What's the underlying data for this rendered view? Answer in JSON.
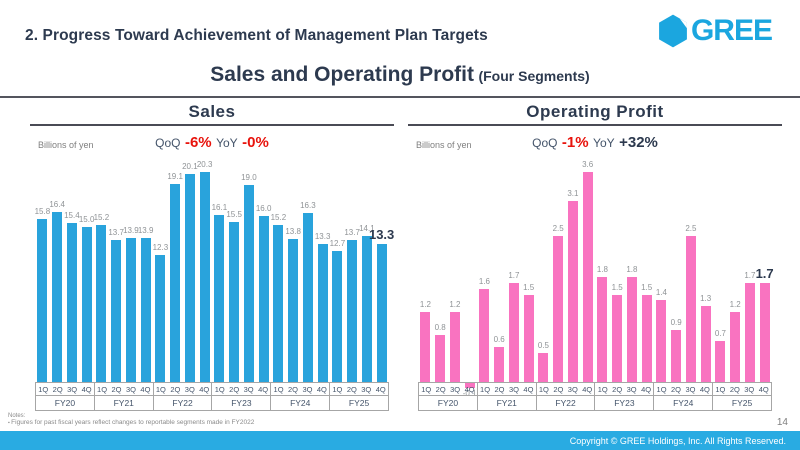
{
  "header": {
    "slide_title": "2. Progress Toward Achievement of Management Plan Targets",
    "logo_text": "GREE",
    "subtitle": "Sales and Operating Profit",
    "subtitle_suffix": "(Four Segments)"
  },
  "colors": {
    "brand_blue": "#1ba6df",
    "title_navy": "#2d3a4f",
    "negative_red": "#e8130c",
    "sales_bar": "#29a3dc",
    "op_bar": "#f973c0",
    "footer_bar": "#29abe2"
  },
  "chart_data": [
    {
      "type": "bar",
      "title": "Sales",
      "unit_label": "Billions of yen",
      "qoq_label": "QoQ",
      "qoq_value": "-6%",
      "qoq_value_color": "#e8130c",
      "yoy_label": "YoY",
      "yoy_value": "-0%",
      "yoy_value_color": "#e8130c",
      "bar_color": "#29a3dc",
      "ylabel": "Billions of yen",
      "ylim": [
        0,
        21
      ],
      "groups": [
        "FY20",
        "FY21",
        "FY22",
        "FY23",
        "FY24",
        "FY25"
      ],
      "quarters": [
        "1Q",
        "2Q",
        "3Q",
        "4Q"
      ],
      "values": [
        [
          15.8,
          16.4,
          15.4,
          15.0
        ],
        [
          15.2,
          13.7,
          13.9,
          13.9
        ],
        [
          12.3,
          19.1,
          20.1,
          20.3
        ],
        [
          16.1,
          15.5,
          19.0,
          16.0
        ],
        [
          15.2,
          13.8,
          16.3,
          13.3
        ],
        [
          12.7,
          13.7,
          14.1,
          13.3
        ]
      ]
    },
    {
      "type": "bar",
      "title": "Operating Profit",
      "unit_label": "Billions of yen",
      "qoq_label": "QoQ",
      "qoq_value": "-1%",
      "qoq_value_color": "#e8130c",
      "yoy_label": "YoY",
      "yoy_value": "+32%",
      "yoy_value_color": "#2d3a4f",
      "bar_color": "#f973c0",
      "ylabel": "Billions of yen",
      "ylim": [
        -0.3,
        3.8
      ],
      "groups": [
        "FY20",
        "FY21",
        "FY22",
        "FY23",
        "FY24",
        "FY25"
      ],
      "quarters": [
        "1Q",
        "2Q",
        "3Q",
        "4Q"
      ],
      "values": [
        [
          1.2,
          0.8,
          1.2,
          -0.1
        ],
        [
          1.6,
          0.6,
          1.7,
          1.5
        ],
        [
          0.5,
          2.5,
          3.1,
          3.6
        ],
        [
          1.8,
          1.5,
          1.8,
          1.5
        ],
        [
          1.4,
          0.9,
          2.5,
          1.3
        ],
        [
          0.7,
          1.2,
          1.7,
          1.7
        ]
      ]
    }
  ],
  "footer": {
    "notes_title": "Notes:",
    "note_item": "Figures for past fiscal years reflect changes to reportable segments made in FY2022",
    "page_number": "14",
    "copyright": "Copyright © GREE Holdings, Inc. All Rights Reserved."
  }
}
